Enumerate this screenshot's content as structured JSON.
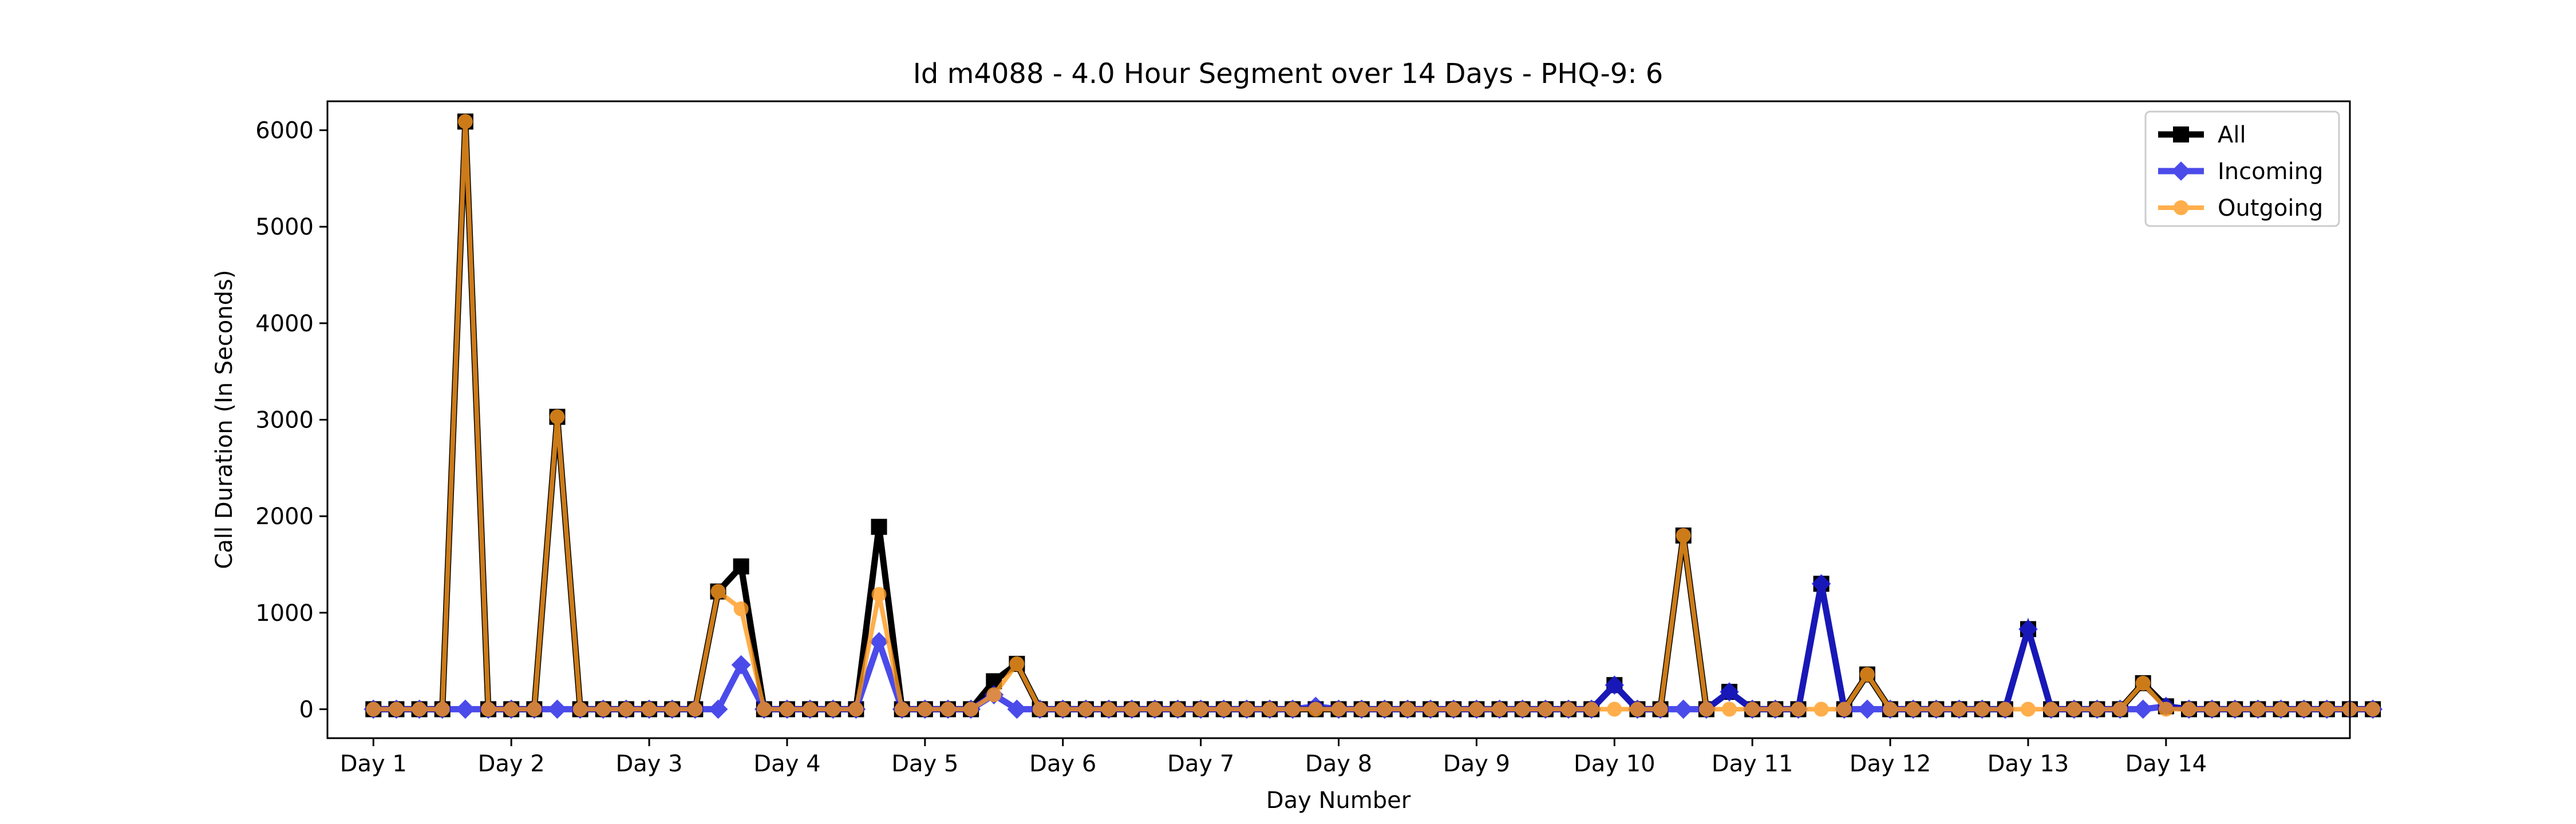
{
  "chart_data": {
    "type": "line",
    "title": "Id m4088 - 4.0 Hour Segment over 14 Days - PHQ-9: 6",
    "xlabel": "Day Number",
    "ylabel": "Call Duration (In Seconds)",
    "ylim": [
      -300,
      6300
    ],
    "xlim": [
      -2,
      86
    ],
    "x_ticks": [
      {
        "x": 0,
        "label": "Day 1"
      },
      {
        "x": 6,
        "label": "Day 2"
      },
      {
        "x": 12,
        "label": "Day 3"
      },
      {
        "x": 18,
        "label": "Day 4"
      },
      {
        "x": 24,
        "label": "Day 5"
      },
      {
        "x": 30,
        "label": "Day 6"
      },
      {
        "x": 36,
        "label": "Day 7"
      },
      {
        "x": 42,
        "label": "Day 8"
      },
      {
        "x": 48,
        "label": "Day 9"
      },
      {
        "x": 54,
        "label": "Day 10"
      },
      {
        "x": 60,
        "label": "Day 11"
      },
      {
        "x": 66,
        "label": "Day 12"
      },
      {
        "x": 72,
        "label": "Day 13"
      },
      {
        "x": 78,
        "label": "Day 14"
      }
    ],
    "y_ticks": [
      0,
      1000,
      2000,
      3000,
      4000,
      5000,
      6000
    ],
    "grid": false,
    "legend_position": "top-right",
    "series": [
      {
        "name": "All",
        "color": "#000000",
        "marker": "square",
        "values": [
          0,
          0,
          0,
          0,
          6090,
          0,
          0,
          0,
          3030,
          0,
          0,
          0,
          0,
          0,
          0,
          1220,
          1480,
          0,
          0,
          0,
          0,
          0,
          1890,
          0,
          0,
          0,
          0,
          290,
          470,
          0,
          0,
          0,
          0,
          0,
          0,
          0,
          0,
          0,
          0,
          0,
          0,
          0,
          0,
          0,
          0,
          0,
          0,
          0,
          0,
          0,
          0,
          0,
          0,
          0,
          250,
          0,
          0,
          1800,
          0,
          180,
          0,
          0,
          0,
          1300,
          0,
          360,
          0,
          0,
          0,
          0,
          0,
          0,
          830,
          0,
          0,
          0,
          0,
          270,
          30,
          0,
          0,
          0,
          0,
          0,
          0,
          0,
          0,
          0
        ]
      },
      {
        "name": "Incoming",
        "color": "#1f1fe6",
        "marker": "diamond",
        "values": [
          0,
          0,
          0,
          0,
          0,
          0,
          0,
          0,
          0,
          0,
          0,
          0,
          0,
          0,
          0,
          0,
          460,
          0,
          0,
          0,
          0,
          0,
          700,
          0,
          0,
          0,
          0,
          150,
          0,
          0,
          0,
          0,
          0,
          0,
          0,
          0,
          0,
          0,
          0,
          0,
          0,
          30,
          0,
          0,
          0,
          0,
          0,
          0,
          0,
          0,
          0,
          0,
          0,
          0,
          250,
          0,
          0,
          0,
          0,
          180,
          0,
          0,
          0,
          1300,
          0,
          0,
          0,
          0,
          0,
          0,
          0,
          0,
          830,
          0,
          0,
          0,
          0,
          0,
          30,
          0,
          0,
          0,
          0,
          0,
          0,
          0,
          0,
          0
        ]
      },
      {
        "name": "Outgoing",
        "color": "#ff9a1f",
        "marker": "circle",
        "values": [
          0,
          0,
          0,
          0,
          6090,
          0,
          0,
          0,
          3030,
          0,
          0,
          0,
          0,
          0,
          0,
          1220,
          1040,
          0,
          0,
          0,
          0,
          0,
          1190,
          0,
          0,
          0,
          0,
          150,
          470,
          0,
          0,
          0,
          0,
          0,
          0,
          0,
          0,
          0,
          0,
          0,
          0,
          0,
          0,
          0,
          0,
          0,
          0,
          0,
          0,
          0,
          0,
          0,
          0,
          0,
          0,
          0,
          0,
          1800,
          0,
          0,
          0,
          0,
          0,
          0,
          0,
          360,
          0,
          0,
          0,
          0,
          0,
          0,
          0,
          0,
          0,
          0,
          0,
          270,
          0,
          0,
          0,
          0,
          0,
          0,
          0,
          0,
          0,
          0
        ]
      }
    ]
  }
}
